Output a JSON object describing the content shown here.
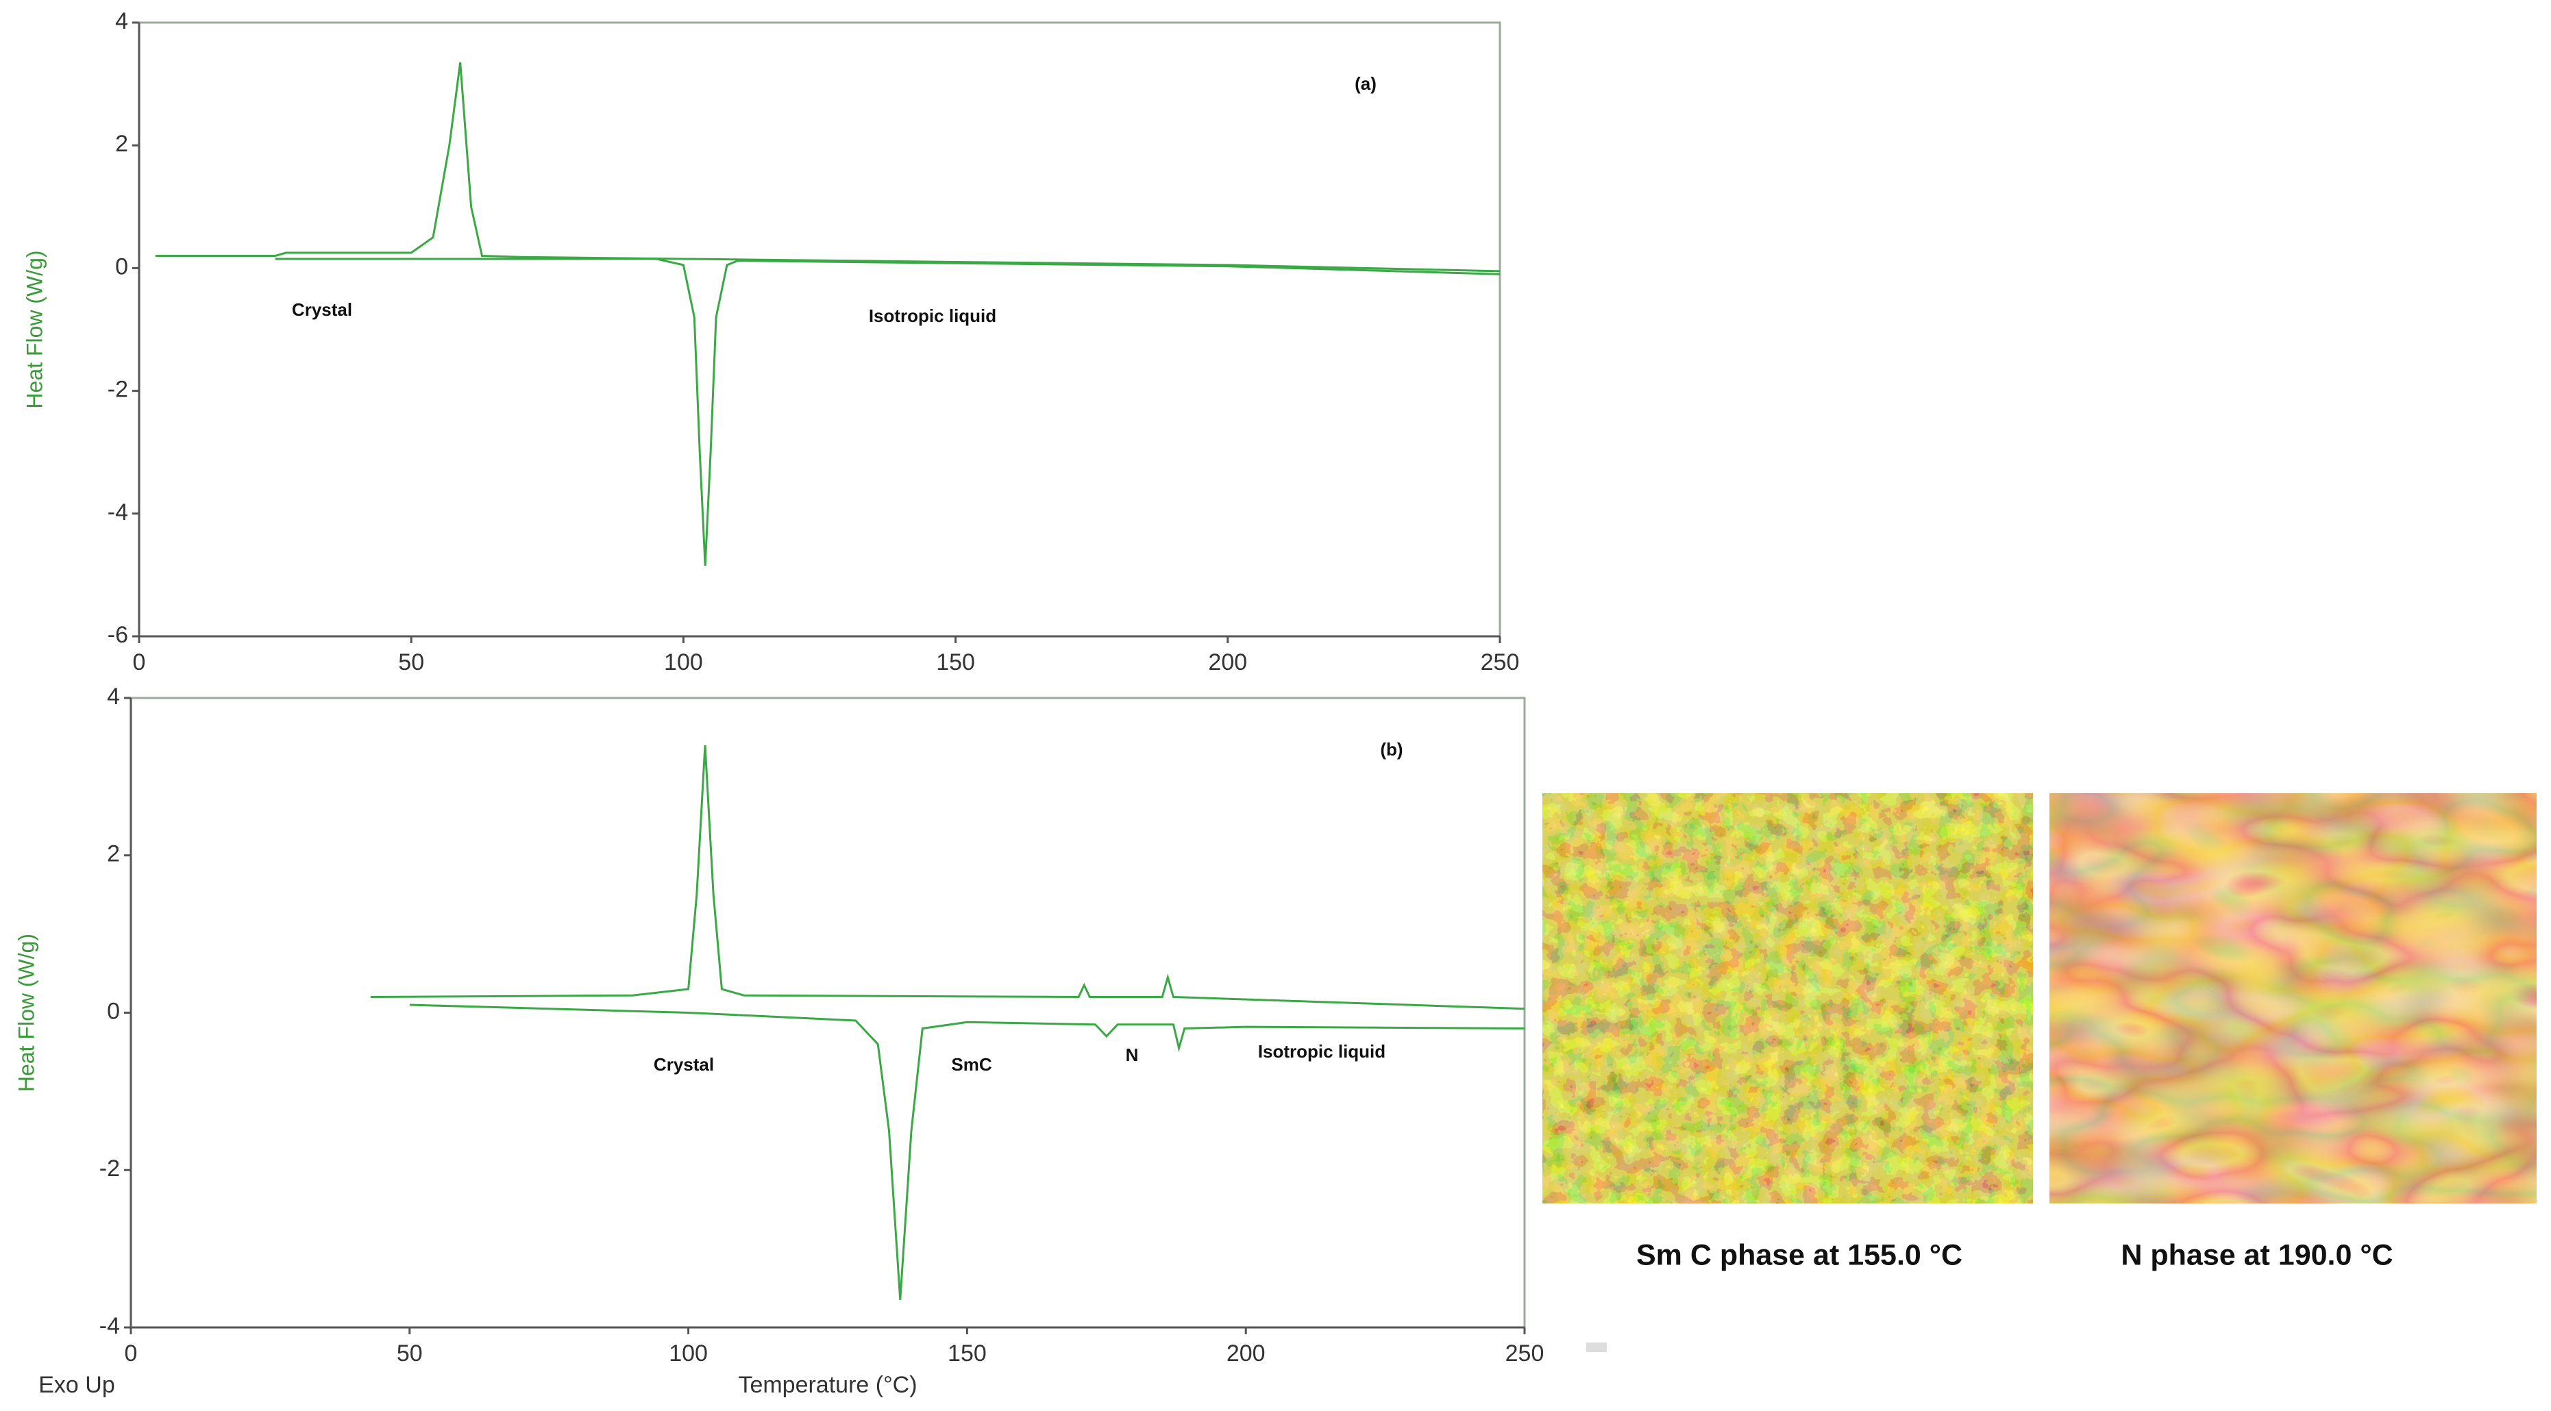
{
  "chart_data": [
    {
      "type": "line",
      "annotations": [
        "(a)",
        "Crystal",
        "Isotropic liquid"
      ],
      "ylabel": "Heat Flow (W/g)",
      "xlim": [
        0,
        250
      ],
      "xticks": [
        0,
        50,
        100,
        150,
        200,
        250
      ],
      "ylim": [
        -6,
        4
      ],
      "yticks": [
        -6,
        -4,
        -2,
        0,
        2,
        4
      ],
      "series": [
        {
          "color": "#3aa845",
          "x": [
            3,
            25,
            27,
            50,
            54,
            57,
            59,
            61,
            63,
            70,
            100,
            150,
            200,
            250
          ],
          "values": [
            0.2,
            0.2,
            0.25,
            0.25,
            0.5,
            2,
            3.35,
            1,
            0.2,
            0.18,
            0.15,
            0.1,
            0.05,
            -0.05
          ]
        },
        {
          "color": "#3aa845",
          "x": [
            25,
            60,
            95,
            100,
            102,
            103,
            104,
            105,
            106,
            108,
            110,
            150,
            200,
            250
          ],
          "values": [
            0.15,
            0.15,
            0.15,
            0.05,
            -0.8,
            -3,
            -4.85,
            -3,
            -0.8,
            0.05,
            0.12,
            0.08,
            0.03,
            -0.1
          ]
        }
      ]
    },
    {
      "type": "line",
      "annotations": [
        "(b)",
        "Crystal",
        "SmC",
        "N",
        "Isotropic liquid"
      ],
      "ylabel": "Heat Flow (W/g)",
      "xlabel": "Temperature (°C)",
      "note": "Exo Up",
      "xlim": [
        0,
        250
      ],
      "xticks": [
        0,
        50,
        100,
        150,
        200,
        250
      ],
      "ylim": [
        -4,
        4
      ],
      "yticks": [
        -4,
        -2,
        0,
        2,
        4
      ],
      "series": [
        {
          "color": "#3aa845",
          "x": [
            43,
            90,
            100,
            101.5,
            103,
            104.5,
            106,
            110,
            170,
            171,
            172,
            185,
            186,
            187,
            250
          ],
          "values": [
            0.2,
            0.22,
            0.3,
            1.5,
            3.4,
            1.5,
            0.3,
            0.22,
            0.2,
            0.35,
            0.2,
            0.2,
            0.45,
            0.2,
            0.05
          ]
        },
        {
          "color": "#3aa845",
          "x": [
            50,
            100,
            130,
            134,
            136,
            138,
            140,
            142,
            150,
            173,
            175,
            177,
            187,
            188,
            189,
            200,
            250
          ],
          "values": [
            0.1,
            0,
            -0.1,
            -0.4,
            -1.5,
            -3.65,
            -1.5,
            -0.2,
            -0.12,
            -0.15,
            -0.3,
            -0.15,
            -0.15,
            -0.45,
            -0.2,
            -0.18,
            -0.2
          ]
        }
      ]
    }
  ],
  "images": [
    {
      "caption": "Sm C phase at 155.0 °C"
    },
    {
      "caption": "N phase at 190.0 °C"
    }
  ]
}
